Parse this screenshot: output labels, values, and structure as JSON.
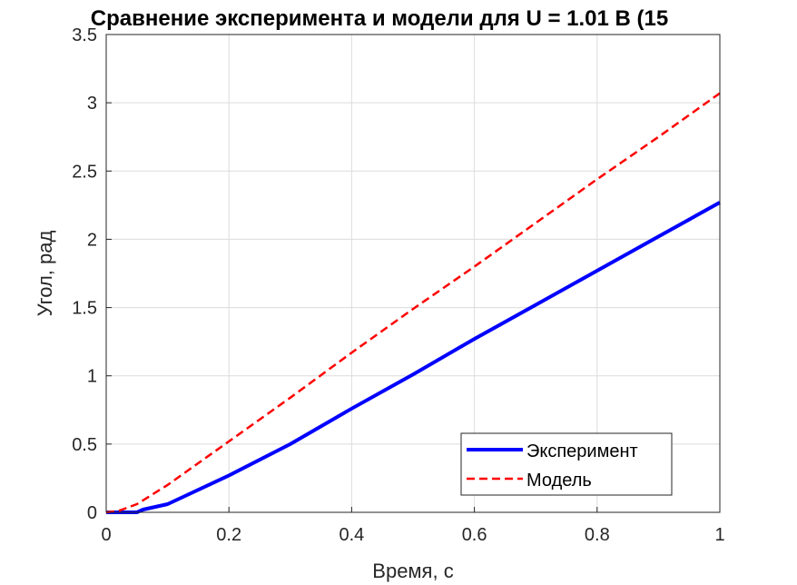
{
  "chart_data": {
    "type": "line",
    "title": "Сравнение эксперимента и модели для U = 1.01 В (15",
    "xlabel": "Время, с",
    "ylabel": "Угол, рад",
    "xlim": [
      0,
      1
    ],
    "ylim": [
      0,
      3.5
    ],
    "xticks": [
      0,
      0.2,
      0.4,
      0.6,
      0.8,
      1
    ],
    "xtick_labels": [
      "0",
      "0.2",
      "0.4",
      "0.6",
      "0.8",
      "1"
    ],
    "yticks": [
      0,
      0.5,
      1,
      1.5,
      2,
      2.5,
      3,
      3.5
    ],
    "ytick_labels": [
      "0",
      "0.5",
      "1",
      "1.5",
      "2",
      "2.5",
      "3",
      "3.5"
    ],
    "grid": true,
    "legend_position": "bottom-right",
    "series": [
      {
        "name": "Эксперимент",
        "color": "#0000ff",
        "style": "solid",
        "x": [
          0,
          0.05,
          0.06,
          0.1,
          0.2,
          0.3,
          0.4,
          0.5,
          0.6,
          0.7,
          0.8,
          0.9,
          1.0
        ],
        "y": [
          0,
          0,
          0.02,
          0.06,
          0.27,
          0.5,
          0.76,
          1.01,
          1.27,
          1.52,
          1.77,
          2.02,
          2.27
        ]
      },
      {
        "name": "Модель",
        "color": "#ff0000",
        "style": "dashed",
        "x": [
          0,
          0.02,
          0.05,
          0.1,
          0.15,
          0.2,
          0.3,
          0.4,
          0.5,
          0.6,
          0.7,
          0.8,
          0.9,
          1.0
        ],
        "y": [
          0,
          0.01,
          0.06,
          0.2,
          0.36,
          0.52,
          0.84,
          1.17,
          1.49,
          1.8,
          2.12,
          2.44,
          2.75,
          3.07
        ]
      }
    ]
  }
}
